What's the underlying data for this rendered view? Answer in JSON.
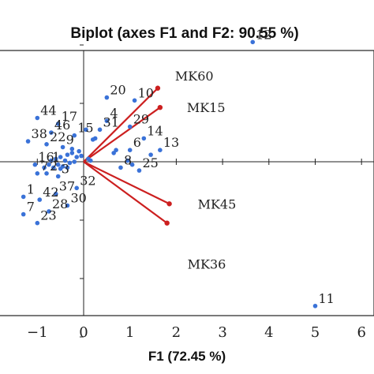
{
  "chart_data": {
    "type": "scatter",
    "title": "Biplot (axes F1 and F2: 90.55 %)",
    "xlabel": "F1 (72.45 %)",
    "ylabel": "",
    "xlim": [
      -1,
      6
    ],
    "ylim": [
      -3.5,
      2.5
    ],
    "x_ticks": [
      "−1",
      "0",
      "1",
      "2",
      "3",
      "4",
      "5",
      "6"
    ],
    "grid": false,
    "variables": [
      {
        "name": "MK60",
        "x": 1.6,
        "y": 1.26
      },
      {
        "name": "MK15",
        "x": 1.65,
        "y": 0.93
      },
      {
        "name": "MK45",
        "x": 1.85,
        "y": -0.72
      },
      {
        "name": "MK36",
        "x": 1.8,
        "y": -1.05
      }
    ],
    "observations": [
      {
        "label": "12",
        "x": 3.65,
        "y": 2.05
      },
      {
        "label": "11",
        "x": 5.0,
        "y": -2.47
      },
      {
        "label": "20",
        "x": 0.5,
        "y": 1.1
      },
      {
        "label": "10",
        "x": 1.1,
        "y": 1.05
      },
      {
        "label": "4",
        "x": 0.5,
        "y": 0.7
      },
      {
        "label": "29",
        "x": 1.0,
        "y": 0.6
      },
      {
        "label": "31",
        "x": 0.35,
        "y": 0.55
      },
      {
        "label": "14",
        "x": 1.3,
        "y": 0.4
      },
      {
        "label": "13",
        "x": 1.65,
        "y": 0.2
      },
      {
        "label": "6",
        "x": 1.0,
        "y": 0.2
      },
      {
        "label": "8",
        "x": 0.8,
        "y": -0.1
      },
      {
        "label": "25",
        "x": 1.2,
        "y": -0.15
      },
      {
        "label": "15",
        "x": -0.2,
        "y": 0.45
      },
      {
        "label": "17",
        "x": -0.55,
        "y": 0.65
      },
      {
        "label": "44",
        "x": -1.0,
        "y": 0.75
      },
      {
        "label": "46",
        "x": -0.7,
        "y": 0.5
      },
      {
        "label": "38",
        "x": -1.2,
        "y": 0.35
      },
      {
        "label": "22",
        "x": -0.8,
        "y": 0.3
      },
      {
        "label": "9",
        "x": -0.45,
        "y": 0.25
      },
      {
        "label": "16",
        "x": -1.05,
        "y": -0.05
      },
      {
        "label": "1",
        "x": -0.75,
        "y": -0.05
      },
      {
        "label": "7",
        "x": -1.0,
        "y": -0.2
      },
      {
        "label": "2",
        "x": -0.8,
        "y": -0.2
      },
      {
        "label": "3",
        "x": -0.55,
        "y": -0.25
      },
      {
        "label": "32",
        "x": -0.15,
        "y": -0.45
      },
      {
        "label": "37",
        "x": -0.6,
        "y": -0.55
      },
      {
        "label": "42",
        "x": -0.95,
        "y": -0.65
      },
      {
        "label": "30",
        "x": -0.35,
        "y": -0.75
      },
      {
        "label": "28",
        "x": -0.75,
        "y": -0.85
      },
      {
        "label": "23",
        "x": -1.0,
        "y": -1.05
      },
      {
        "label": "1",
        "x": -1.3,
        "y": -0.6
      },
      {
        "label": "7",
        "x": -1.3,
        "y": -0.9
      }
    ],
    "extra_points": [
      {
        "x": 0.05,
        "y": 0.55
      },
      {
        "x": 0.2,
        "y": 0.38
      },
      {
        "x": 0.1,
        "y": 0.05
      },
      {
        "x": 0.15,
        "y": 0.02
      },
      {
        "x": 0.65,
        "y": 0.15
      },
      {
        "x": 0.7,
        "y": 0.2
      },
      {
        "x": 0.95,
        "y": 0.02
      },
      {
        "x": 1.05,
        "y": -0.05
      },
      {
        "x": 1.45,
        "y": 0.12
      },
      {
        "x": -0.1,
        "y": 0.18
      },
      {
        "x": -0.25,
        "y": 0.15
      },
      {
        "x": -0.35,
        "y": 0.12
      },
      {
        "x": -0.5,
        "y": 0.08
      },
      {
        "x": -0.6,
        "y": 0.05
      },
      {
        "x": -0.7,
        "y": 0.02
      },
      {
        "x": -0.4,
        "y": 0.02
      },
      {
        "x": -0.3,
        "y": -0.02
      },
      {
        "x": -0.2,
        "y": 0.0
      },
      {
        "x": -0.15,
        "y": 0.08
      },
      {
        "x": -0.55,
        "y": -0.05
      },
      {
        "x": -0.45,
        "y": -0.08
      },
      {
        "x": -0.65,
        "y": -0.1
      },
      {
        "x": -0.35,
        "y": -0.1
      },
      {
        "x": -0.05,
        "y": 0.1
      },
      {
        "x": 0.25,
        "y": 0.4
      },
      {
        "x": -0.25,
        "y": 0.22
      },
      {
        "x": -0.85,
        "y": -0.1
      },
      {
        "x": -0.5,
        "y": -0.12
      }
    ],
    "colors": {
      "points": "#3a72d8",
      "vectors": "#cc1f1f"
    }
  }
}
